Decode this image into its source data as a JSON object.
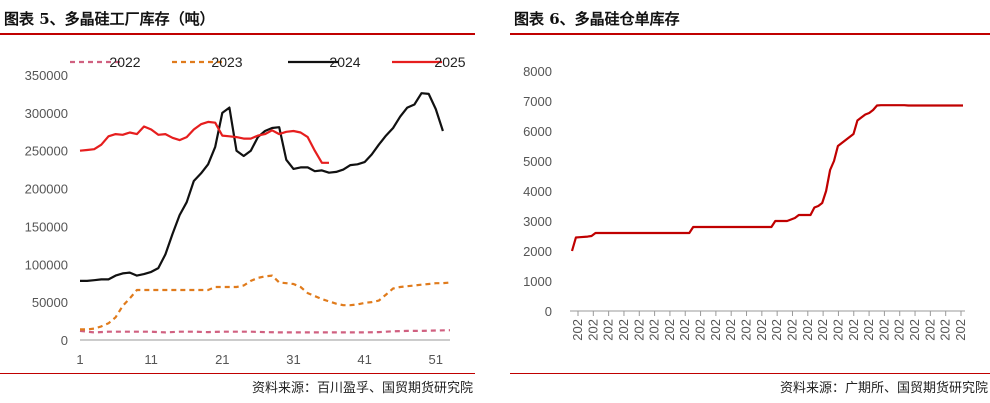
{
  "chart_data": [
    {
      "type": "line",
      "title": "图表 5、多晶硅工厂库存（吨）",
      "source": "资料来源：百川盈孚、国贸期货研究院",
      "xlabel": "",
      "ylabel": "",
      "xlim": [
        1,
        53
      ],
      "ylim": [
        0,
        350000
      ],
      "x_ticks": [
        "1",
        "11",
        "21",
        "31",
        "41",
        "51"
      ],
      "y_ticks": [
        "0",
        "50000",
        "100000",
        "150000",
        "200000",
        "250000",
        "300000",
        "350000"
      ],
      "legend_position": "top",
      "series": [
        {
          "name": "2022",
          "color": "#d06080",
          "style": "dashed",
          "x": [
            1,
            3,
            5,
            7,
            9,
            11,
            13,
            15,
            17,
            19,
            21,
            23,
            25,
            27,
            29,
            31,
            33,
            35,
            37,
            39,
            41,
            43,
            45,
            47,
            49,
            51,
            53
          ],
          "values": [
            12000,
            10000,
            11000,
            11000,
            11000,
            11000,
            10000,
            11000,
            11000,
            10500,
            11000,
            11000,
            11000,
            10500,
            10000,
            10000,
            10000,
            10000,
            10000,
            10000,
            10000,
            10500,
            11500,
            12000,
            12000,
            12500,
            13000
          ]
        },
        {
          "name": "2023",
          "color": "#e07b1c",
          "style": "dashed",
          "x": [
            1,
            2,
            3,
            4,
            5,
            6,
            7,
            8,
            9,
            10,
            11,
            12,
            13,
            14,
            15,
            16,
            17,
            18,
            19,
            20,
            21,
            22,
            23,
            24,
            25,
            26,
            27,
            28,
            29,
            30,
            31,
            32,
            33,
            34,
            35,
            36,
            37,
            38,
            39,
            40,
            41,
            42,
            43,
            44,
            45,
            46,
            47,
            48,
            49,
            50,
            51,
            52,
            53
          ],
          "values": [
            14000,
            14000,
            15000,
            18000,
            22000,
            30000,
            45000,
            55000,
            66000,
            66000,
            66000,
            66000,
            66000,
            66000,
            66000,
            66000,
            66000,
            66000,
            66000,
            70000,
            70000,
            70000,
            70000,
            72000,
            78000,
            82000,
            84000,
            85000,
            76000,
            75000,
            74000,
            70000,
            62000,
            58000,
            54000,
            51000,
            48000,
            46000,
            46000,
            47000,
            49000,
            50000,
            52000,
            60000,
            68000,
            70000,
            71000,
            72000,
            73000,
            74000,
            75000,
            75000,
            76000
          ]
        },
        {
          "name": "2024",
          "color": "#111111",
          "style": "solid",
          "x": [
            1,
            2,
            3,
            4,
            5,
            6,
            7,
            8,
            9,
            10,
            11,
            12,
            13,
            14,
            15,
            16,
            17,
            18,
            19,
            20,
            21,
            22,
            23,
            24,
            25,
            26,
            27,
            28,
            29,
            30,
            31,
            32,
            33,
            34,
            35,
            36,
            37,
            38,
            39,
            40,
            41,
            42,
            43,
            44,
            45,
            46,
            47,
            48,
            49,
            50,
            51,
            52
          ],
          "values": [
            78000,
            78000,
            79000,
            80000,
            80000,
            85000,
            88000,
            89000,
            85000,
            87000,
            90000,
            95000,
            113000,
            140000,
            165000,
            182000,
            210000,
            220000,
            232000,
            255000,
            300000,
            307000,
            250000,
            243000,
            250000,
            268000,
            276000,
            280000,
            281000,
            238000,
            226000,
            228000,
            228000,
            223000,
            224000,
            221000,
            222000,
            225000,
            231000,
            232000,
            235000,
            245000,
            258000,
            270000,
            280000,
            295000,
            307000,
            311000,
            326000,
            325000,
            305000,
            276000
          ]
        },
        {
          "name": "2025",
          "color": "#e61e1e",
          "style": "solid",
          "x": [
            1,
            2,
            3,
            4,
            5,
            6,
            7,
            8,
            9,
            10,
            11,
            12,
            13,
            14,
            15,
            16,
            17,
            18,
            19,
            20,
            21,
            22,
            23,
            24,
            25,
            26,
            27,
            28,
            29,
            30,
            31,
            32,
            33,
            34,
            35,
            36
          ],
          "values": [
            250000,
            251000,
            252000,
            258000,
            269000,
            272000,
            271000,
            274000,
            272000,
            282000,
            278000,
            271000,
            272000,
            267000,
            264000,
            268000,
            278000,
            285000,
            288000,
            287000,
            270000,
            269000,
            268000,
            266000,
            266000,
            270000,
            272000,
            277000,
            272000,
            275000,
            276000,
            274000,
            268000,
            250000,
            234000,
            234000
          ]
        }
      ]
    },
    {
      "type": "line",
      "title": "图表 6、多晶硅仓单库存",
      "source": "资料来源：广期所、国贸期货研究院",
      "xlabel": "",
      "ylabel": "",
      "ylim": [
        0,
        8000
      ],
      "y_ticks": [
        "0",
        "1000",
        "2000",
        "3000",
        "4000",
        "5000",
        "6000",
        "7000",
        "8000"
      ],
      "x_ticks": [
        "202",
        "202",
        "202",
        "202",
        "202",
        "202",
        "202",
        "202",
        "202",
        "202",
        "202",
        "202",
        "202",
        "202",
        "202",
        "202",
        "202",
        "202",
        "202",
        "202",
        "202",
        "202",
        "202",
        "202",
        "202",
        "202"
      ],
      "series": [
        {
          "name": "多晶硅仓单库存",
          "color": "#c00000",
          "style": "solid",
          "x": [
            0,
            1,
            2,
            4,
            5,
            6,
            7,
            8,
            9,
            10,
            11,
            12,
            13,
            14,
            15,
            16,
            17,
            18,
            19,
            20,
            21,
            22,
            23,
            24,
            25,
            26,
            27,
            28,
            29,
            30,
            31,
            32,
            33,
            34,
            35,
            36,
            37,
            38,
            39,
            40,
            41,
            42,
            43,
            44,
            45,
            46,
            47,
            48,
            49,
            50,
            51,
            52,
            53,
            54,
            55,
            56,
            57,
            58,
            59,
            60,
            61,
            62,
            63,
            64,
            65,
            66,
            67,
            68,
            69,
            70,
            71,
            72,
            73,
            74,
            75,
            76,
            77,
            78,
            79,
            80,
            81,
            82,
            83,
            84,
            85,
            86,
            87,
            88,
            89,
            90,
            91,
            92,
            93,
            94,
            95,
            96,
            97,
            98,
            99,
            100
          ],
          "values": [
            2000,
            2450,
            2460,
            2480,
            2500,
            2600,
            2600,
            2600,
            2600,
            2600,
            2600,
            2600,
            2600,
            2600,
            2600,
            2600,
            2600,
            2600,
            2600,
            2600,
            2600,
            2600,
            2600,
            2600,
            2600,
            2600,
            2600,
            2600,
            2600,
            2600,
            2800,
            2800,
            2800,
            2800,
            2800,
            2800,
            2800,
            2800,
            2800,
            2800,
            2800,
            2800,
            2800,
            2800,
            2800,
            2800,
            2800,
            2800,
            2800,
            2800,
            2800,
            3000,
            3000,
            3000,
            3000,
            3050,
            3100,
            3200,
            3200,
            3200,
            3200,
            3450,
            3500,
            3600,
            4000,
            4700,
            5000,
            5500,
            5600,
            5700,
            5800,
            5900,
            6350,
            6450,
            6550,
            6600,
            6700,
            6850,
            6860,
            6860,
            6860,
            6860,
            6860,
            6860,
            6860,
            6850,
            6850,
            6850,
            6850,
            6850,
            6850,
            6850,
            6850,
            6850,
            6850,
            6850,
            6850,
            6850,
            6850,
            6850
          ]
        }
      ]
    }
  ]
}
